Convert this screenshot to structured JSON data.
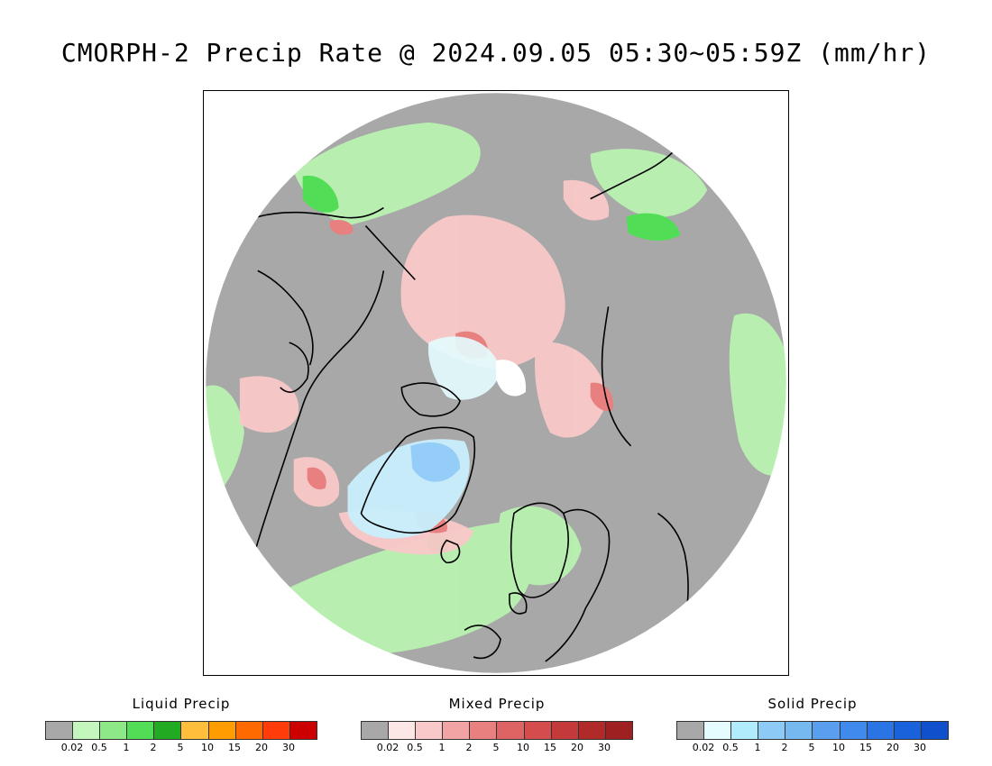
{
  "title": "CMORPH-2 Precip Rate @ 2024.09.05 05:30~05:59Z (mm/hr)",
  "colors": {
    "no_precip": "#a8a8a8",
    "ocean_light_green": "#b8f2b0",
    "land_outline": "#000000"
  },
  "legends": [
    {
      "title": "Liquid Precip",
      "colors": [
        "#a8a8a8",
        "#c4f7bd",
        "#8ee887",
        "#52dd56",
        "#22aa22",
        "#ffbe3c",
        "#ff9c00",
        "#ff6a00",
        "#ff3c0a",
        "#cc0000"
      ],
      "ticks": [
        "0.02",
        "0.5",
        "1",
        "2",
        "5",
        "10",
        "15",
        "20",
        "30"
      ]
    },
    {
      "title": "Mixed Precip",
      "colors": [
        "#a8a8a8",
        "#fde6e6",
        "#f9c8c8",
        "#f2a4a4",
        "#e88080",
        "#de6464",
        "#d44c4c",
        "#c43a3a",
        "#b02a2a",
        "#9e2020"
      ],
      "ticks": [
        "0.02",
        "0.5",
        "1",
        "2",
        "5",
        "10",
        "15",
        "20",
        "30"
      ]
    },
    {
      "title": "Solid Precip",
      "colors": [
        "#a8a8a8",
        "#e4fcff",
        "#b0ecfb",
        "#8ecaf6",
        "#76b8f0",
        "#5a9ef0",
        "#3f8aec",
        "#2a74e4",
        "#1a62dc",
        "#1050cc"
      ],
      "ticks": [
        "0.02",
        "0.5",
        "1",
        "2",
        "5",
        "10",
        "15",
        "20",
        "30"
      ]
    }
  ]
}
